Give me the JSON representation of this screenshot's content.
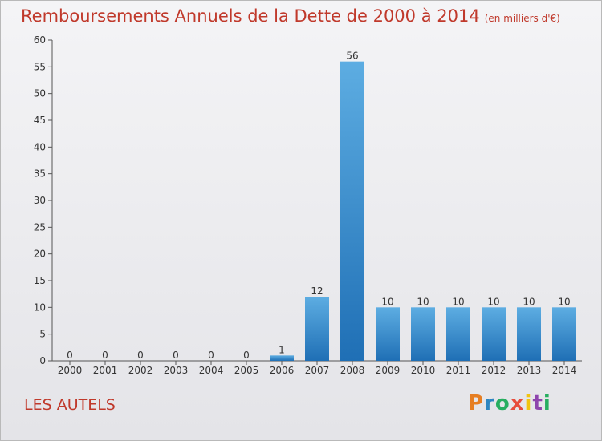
{
  "header": {
    "title": "Remboursements Annuels de la Dette de 2000 à 2014",
    "unit": "(en milliers d'€)"
  },
  "footer": {
    "commune": "LES AUTELS",
    "logo_text": "Proxiti",
    "logo_colors": [
      "#e67e22",
      "#2e86c1",
      "#27ae60",
      "#e74c3c",
      "#f1c40f",
      "#8e44ad",
      "#27ae60"
    ]
  },
  "chart_data": {
    "type": "bar",
    "categories": [
      "2000",
      "2001",
      "2002",
      "2003",
      "2004",
      "2005",
      "2006",
      "2007",
      "2008",
      "2009",
      "2010",
      "2011",
      "2012",
      "2013",
      "2014"
    ],
    "values": [
      0,
      0,
      0,
      0,
      0,
      0,
      1,
      12,
      56,
      10,
      10,
      10,
      10,
      10,
      10
    ],
    "data_labels": [
      "0",
      "0",
      "0",
      "0",
      "0",
      "0",
      "1",
      "12",
      "56",
      "10",
      "10",
      "10",
      "10",
      "10",
      "10"
    ],
    "yticks": [
      "0",
      "5",
      "10",
      "15",
      "20",
      "25",
      "30",
      "35",
      "40",
      "45",
      "50",
      "55",
      "60"
    ],
    "ylim": [
      0,
      60
    ],
    "grid": false,
    "bar_color": "#3a8fd6"
  }
}
